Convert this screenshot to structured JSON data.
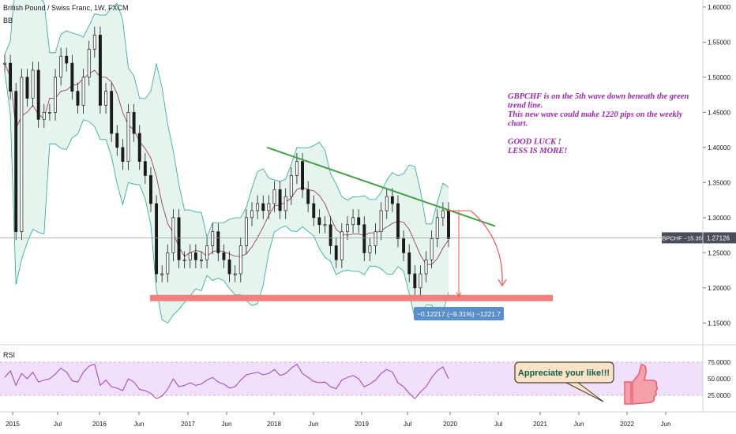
{
  "header": {
    "symbol_title": "British Pound / Swiss Franc, 1W, FXCM",
    "indicator_label": "BB"
  },
  "rsi_label": "RSI",
  "price_tag": {
    "symbol_change": "GBPCHF −15.35%",
    "price": "1.27126"
  },
  "measure_label": "−0.12217 (−9.31%) −1221.7",
  "annotation": {
    "lines": [
      "GBPCHF is on the 5th wave down beneath the green",
      "trend line.",
      "This new wave could make 1220 pips on the weekly",
      "chart.",
      "",
      "GOOD LUCK !",
      "LESS IS MORE!"
    ]
  },
  "like_bubble": "Appreciate your like!!!",
  "colors": {
    "candle_up": "#1b1b1b",
    "band_fill": "#e6f4ee",
    "band_line": "#26a69a",
    "basis_line": "#8b2c4a",
    "trendline": "#43a047",
    "support_zone": "#f28080",
    "rsi_band": "#f1e0fb",
    "rsi_line": "#9c3fbf",
    "annotation": "#9c27b0",
    "measure": "#ef5350",
    "measure_label_bg": "#5b8fc9"
  },
  "chart_data": {
    "type": "line",
    "title": "British Pound / Swiss Franc, 1W, FXCM",
    "xlabel": "",
    "ylabel": "",
    "x_ticks": [
      "2015",
      "Jul",
      "2016",
      "Jun",
      "2017",
      "Jun",
      "2018",
      "Jun",
      "2019",
      "Jul",
      "2020",
      "Jul",
      "2021",
      "Jun",
      "2022",
      "Jun"
    ],
    "y_ticks": [
      "1.15000",
      "1.20000",
      "1.25000",
      "1.30000",
      "1.35000",
      "1.40000",
      "1.45000",
      "1.50000",
      "1.55000",
      "1.60000"
    ],
    "ylim": [
      1.12,
      1.61
    ],
    "grid": false,
    "series": [
      {
        "values": [
          1.52,
          1.48,
          1.28,
          1.5,
          1.47,
          1.51,
          1.44,
          1.45,
          1.45,
          1.5,
          1.53,
          1.52,
          1.48,
          1.46,
          1.5,
          1.54,
          1.56,
          1.46,
          1.48,
          1.42,
          1.4,
          1.38,
          1.45,
          1.42,
          1.38,
          1.36,
          1.32,
          1.22,
          1.22,
          1.25,
          1.3,
          1.24,
          1.24,
          1.25,
          1.24,
          1.24,
          1.26,
          1.28,
          1.25,
          1.24,
          1.22,
          1.22,
          1.26,
          1.3,
          1.31,
          1.32,
          1.31,
          1.32,
          1.34,
          1.31,
          1.33,
          1.36,
          1.38,
          1.34,
          1.32,
          1.3,
          1.29,
          1.29,
          1.26,
          1.24,
          1.28,
          1.29,
          1.3,
          1.29,
          1.25,
          1.26,
          1.28,
          1.31,
          1.33,
          1.32,
          1.27,
          1.25,
          1.22,
          1.2,
          1.22,
          1.24,
          1.27,
          1.3,
          1.31,
          1.27
        ]
      },
      {
        "name": "RSI",
        "values": [
          52,
          62,
          40,
          58,
          50,
          60,
          45,
          48,
          50,
          57,
          66,
          60,
          47,
          45,
          60,
          69,
          72,
          40,
          48,
          38,
          36,
          32,
          50,
          45,
          34,
          32,
          28,
          20,
          24,
          34,
          50,
          38,
          40,
          44,
          40,
          42,
          48,
          52,
          45,
          42,
          36,
          38,
          48,
          56,
          58,
          60,
          56,
          58,
          64,
          55,
          58,
          66,
          72,
          58,
          52,
          46,
          44,
          45,
          38,
          35,
          48,
          52,
          55,
          50,
          38,
          42,
          48,
          58,
          64,
          60,
          44,
          38,
          28,
          20,
          30,
          38,
          52,
          62,
          68,
          50
        ]
      }
    ],
    "rsi_ticks": [
      "25.0000",
      "50.0000",
      "75.0000"
    ],
    "rsi_ylim": [
      0,
      100
    ]
  }
}
